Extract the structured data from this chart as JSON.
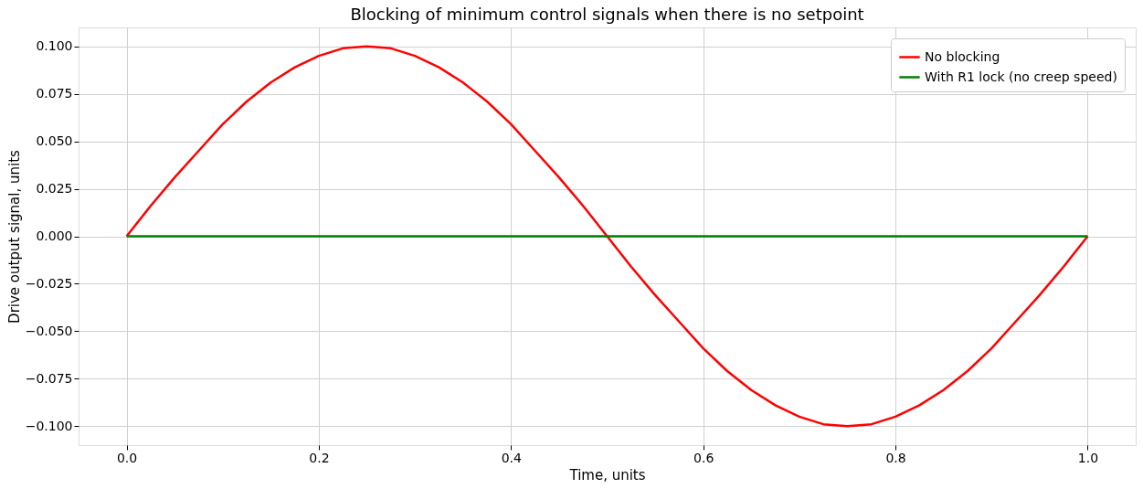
{
  "chart_data": {
    "type": "line",
    "title": "Blocking of minimum control signals when there is no setpoint",
    "xlabel": "Time, units",
    "ylabel": "Drive output signal, units",
    "x": [
      0,
      0.025,
      0.05,
      0.075,
      0.1,
      0.125,
      0.15,
      0.175,
      0.2,
      0.225,
      0.25,
      0.275,
      0.3,
      0.325,
      0.35,
      0.375,
      0.4,
      0.425,
      0.45,
      0.475,
      0.5,
      0.525,
      0.55,
      0.575,
      0.6,
      0.625,
      0.65,
      0.675,
      0.7,
      0.725,
      0.75,
      0.775,
      0.8,
      0.825,
      0.85,
      0.875,
      0.9,
      0.925,
      0.95,
      0.975,
      1.0
    ],
    "series": [
      {
        "name": "No blocking",
        "color": "#ff0000",
        "values": [
          0,
          0.016,
          0.031,
          0.045,
          0.059,
          0.071,
          0.081,
          0.089,
          0.095,
          0.099,
          0.1,
          0.099,
          0.095,
          0.089,
          0.081,
          0.071,
          0.059,
          0.045,
          0.031,
          0.016,
          0,
          -0.016,
          -0.031,
          -0.045,
          -0.059,
          -0.071,
          -0.081,
          -0.089,
          -0.095,
          -0.099,
          -0.1,
          -0.099,
          -0.095,
          -0.089,
          -0.081,
          -0.071,
          -0.059,
          -0.045,
          -0.031,
          -0.016,
          0
        ]
      },
      {
        "name": "With R1 lock (no creep speed)",
        "color": "#008000",
        "values": [
          0,
          0,
          0,
          0,
          0,
          0,
          0,
          0,
          0,
          0,
          0,
          0,
          0,
          0,
          0,
          0,
          0,
          0,
          0,
          0,
          0,
          0,
          0,
          0,
          0,
          0,
          0,
          0,
          0,
          0,
          0,
          0,
          0,
          0,
          0,
          0,
          0,
          0,
          0,
          0,
          0
        ]
      }
    ],
    "xlim": [
      -0.05,
      1.05
    ],
    "ylim": [
      -0.11,
      0.11
    ],
    "xticks": [
      {
        "value": 0,
        "label": "0.0"
      },
      {
        "value": 0.2,
        "label": "0.2"
      },
      {
        "value": 0.4,
        "label": "0.4"
      },
      {
        "value": 0.6,
        "label": "0.6"
      },
      {
        "value": 0.8,
        "label": "0.8"
      },
      {
        "value": 1.0,
        "label": "1.0"
      }
    ],
    "yticks": [
      {
        "value": -0.1,
        "label": "−0.100"
      },
      {
        "value": -0.075,
        "label": "−0.075"
      },
      {
        "value": -0.05,
        "label": "−0.050"
      },
      {
        "value": -0.025,
        "label": "−0.025"
      },
      {
        "value": 0,
        "label": "0.000"
      },
      {
        "value": 0.025,
        "label": "0.025"
      },
      {
        "value": 0.05,
        "label": "0.050"
      },
      {
        "value": 0.075,
        "label": "0.075"
      },
      {
        "value": 0.1,
        "label": "0.100"
      }
    ],
    "grid": true,
    "legend": "top right",
    "marker": "none",
    "line_style": "solid"
  }
}
